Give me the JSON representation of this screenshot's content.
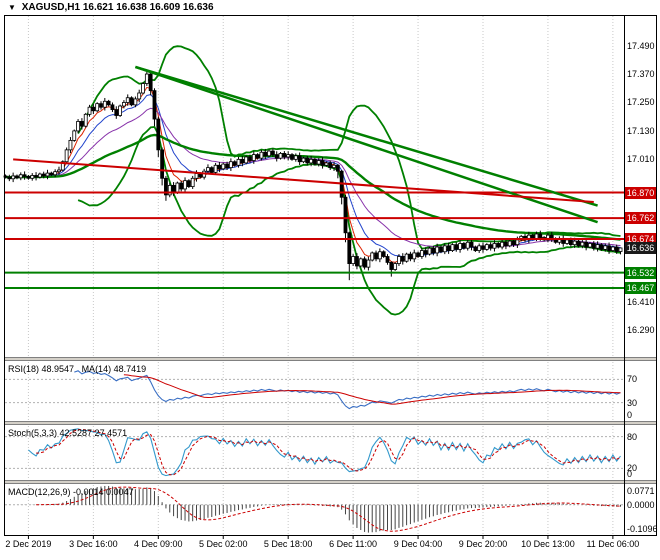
{
  "header": {
    "dropdown_icon": "▼",
    "symbol": "XAGUSD,H1",
    "ohlc": "16.621 16.638 16.609 16.636"
  },
  "price_axis": {
    "plain_labels": [
      {
        "label": "17.490",
        "price": 17.49
      },
      {
        "label": "17.370",
        "price": 17.37
      },
      {
        "label": "17.250",
        "price": 17.25
      },
      {
        "label": "17.130",
        "price": 17.13
      },
      {
        "label": "17.010",
        "price": 17.01
      },
      {
        "label": "16.410",
        "price": 16.41
      },
      {
        "label": "16.290",
        "price": 16.29
      }
    ],
    "level_boxes": [
      {
        "label": "16.870",
        "price": 16.87,
        "bg": "#cc0000"
      },
      {
        "label": "16.762",
        "price": 16.762,
        "bg": "#cc0000"
      },
      {
        "label": "16.674",
        "price": 16.674,
        "bg": "#cc0000"
      },
      {
        "label": "16.636",
        "price": 16.636,
        "bg": "#1a1a1a"
      },
      {
        "label": "16.532",
        "price": 16.532,
        "bg": "#008000"
      },
      {
        "label": "16.467",
        "price": 16.467,
        "bg": "#008000"
      }
    ]
  },
  "time_axis": {
    "labels": [
      "2 Dec 2019",
      "3 Dec 16:00",
      "4 Dec 09:00",
      "5 Dec 02:00",
      "5 Dec 18:00",
      "6 Dec 11:00",
      "9 Dec 04:00",
      "9 Dec 20:00",
      "10 Dec 13:00",
      "11 Dec 06:00"
    ]
  },
  "panels": {
    "rsi": {
      "label1": "RSI(18) 48.9547",
      "label2": "MA(14) 48.7419",
      "levels": [
        {
          "label": "70",
          "level": 70
        },
        {
          "label": "30",
          "level": 30
        }
      ],
      "bottom_label": "0",
      "config": {
        "period": 18,
        "ma_period": 14
      }
    },
    "stoch": {
      "label1": "Stoch(5,3,3) 42.5287 27.4571",
      "label2": "",
      "levels": [
        {
          "label": "80",
          "level": 80
        },
        {
          "label": "20",
          "level": 20
        }
      ],
      "bottom_label": "0",
      "config": {
        "k": 5,
        "d": 3,
        "slowing": 3
      }
    },
    "macd": {
      "label1": "MACD(12,26,9) -0.0014 0.0047",
      "label2": "",
      "axis_top": "0.0771",
      "axis_zero": "0.0000",
      "axis_bottom": "-0.1096",
      "config": {
        "fast": 12,
        "slow": 26,
        "signal": 9
      }
    }
  },
  "chart_data": {
    "type": "candlestick",
    "title": "XAGUSD H1",
    "ylim": [
      16.18,
      17.615
    ],
    "x_labels": [
      "2 Dec 2019",
      "3 Dec 16:00",
      "4 Dec 09:00",
      "5 Dec 02:00",
      "5 Dec 18:00",
      "6 Dec 11:00",
      "9 Dec 04:00",
      "9 Dec 20:00",
      "10 Dec 13:00",
      "11 Dec 06:00"
    ],
    "overlays": {
      "horizontal_lines": [
        {
          "price": 16.87,
          "color": "#cc0000",
          "width": 2
        },
        {
          "price": 16.762,
          "color": "#cc0000",
          "width": 2
        },
        {
          "price": 16.674,
          "color": "#cc0000",
          "width": 2
        },
        {
          "price": 16.532,
          "color": "#008000",
          "width": 2
        },
        {
          "price": 16.467,
          "color": "#008000",
          "width": 2
        }
      ],
      "trendlines": [
        {
          "from_bar": 34,
          "from_price": 17.4,
          "to_bar": 155,
          "to_price": 16.815,
          "color": "#008000",
          "width": 2.5
        },
        {
          "from_bar": 34,
          "from_price": 17.4,
          "to_bar": 155,
          "to_price": 16.745,
          "color": "#008000",
          "width": 2.5
        },
        {
          "from_bar": 2,
          "from_price": 17.01,
          "to_bar": 154,
          "to_price": 16.83,
          "color": "#cc0000",
          "width": 2
        }
      ],
      "moving_averages": [
        {
          "period": 5,
          "color": "#dd2200",
          "width": 1
        },
        {
          "period": 10,
          "color": "#2244cc",
          "width": 1
        },
        {
          "period": 21,
          "color": "#8833aa",
          "width": 1
        },
        {
          "period": 55,
          "color": "#008000",
          "width": 2.4
        }
      ],
      "bollinger": {
        "period": 20,
        "deviation": 2,
        "color": "#008000",
        "width": 1.8
      }
    },
    "candles": [
      [
        16.94,
        16.946,
        16.929,
        16.935
      ],
      [
        16.935,
        16.945,
        16.918,
        16.928
      ],
      [
        16.928,
        16.954,
        16.914,
        16.94
      ],
      [
        16.94,
        16.946,
        16.926,
        16.932
      ],
      [
        16.932,
        16.955,
        16.922,
        16.945
      ],
      [
        16.945,
        16.959,
        16.924,
        16.938
      ],
      [
        16.938,
        16.944,
        16.924,
        16.93
      ],
      [
        16.93,
        16.952,
        16.92,
        16.942
      ],
      [
        16.942,
        16.956,
        16.921,
        16.935
      ],
      [
        16.935,
        16.954,
        16.929,
        16.948
      ],
      [
        16.948,
        16.958,
        16.93,
        16.94
      ],
      [
        16.94,
        16.966,
        16.926,
        16.952
      ],
      [
        16.952,
        16.958,
        16.939,
        16.945
      ],
      [
        16.945,
        16.968,
        16.935,
        16.958
      ],
      [
        16.958,
        16.979,
        16.944,
        16.965
      ],
      [
        16.965,
        17.006,
        16.959,
        17.0
      ],
      [
        17.0,
        17.06,
        16.99,
        17.05
      ],
      [
        17.05,
        17.104,
        17.036,
        17.09
      ],
      [
        17.09,
        17.136,
        17.084,
        17.13
      ],
      [
        17.13,
        17.18,
        17.12,
        17.17
      ],
      [
        17.17,
        17.184,
        17.136,
        17.15
      ],
      [
        17.15,
        17.206,
        17.144,
        17.2
      ],
      [
        17.2,
        17.24,
        17.19,
        17.23
      ],
      [
        17.23,
        17.244,
        17.201,
        17.215
      ],
      [
        17.215,
        17.251,
        17.209,
        17.245
      ],
      [
        17.245,
        17.255,
        17.22,
        17.23
      ],
      [
        17.23,
        17.269,
        17.216,
        17.255
      ],
      [
        17.255,
        17.261,
        17.234,
        17.24
      ],
      [
        17.24,
        17.25,
        17.21,
        17.22
      ],
      [
        17.22,
        17.234,
        17.181,
        17.195
      ],
      [
        17.195,
        17.241,
        17.189,
        17.235
      ],
      [
        17.235,
        17.26,
        17.225,
        17.25
      ],
      [
        17.25,
        17.284,
        17.236,
        17.27
      ],
      [
        17.27,
        17.276,
        17.234,
        17.24
      ],
      [
        17.24,
        17.275,
        17.23,
        17.265
      ],
      [
        17.265,
        17.304,
        17.251,
        17.29
      ],
      [
        17.29,
        17.336,
        17.284,
        17.33
      ],
      [
        17.33,
        17.385,
        17.32,
        17.37
      ],
      [
        17.37,
        17.375,
        17.28,
        17.3
      ],
      [
        17.3,
        17.31,
        17.15,
        17.18
      ],
      [
        17.18,
        17.19,
        17.02,
        17.05
      ],
      [
        17.05,
        17.06,
        16.9,
        16.93
      ],
      [
        16.93,
        16.94,
        16.835,
        16.86
      ],
      [
        16.86,
        16.91,
        16.85,
        16.9
      ],
      [
        16.9,
        16.914,
        16.856,
        16.87
      ],
      [
        16.87,
        16.916,
        16.864,
        16.91
      ],
      [
        16.91,
        16.92,
        16.875,
        16.885
      ],
      [
        16.885,
        16.934,
        16.871,
        16.92
      ],
      [
        16.92,
        16.926,
        16.889,
        16.895
      ],
      [
        16.895,
        16.94,
        16.885,
        16.93
      ],
      [
        16.93,
        16.964,
        16.916,
        16.95
      ],
      [
        16.95,
        16.956,
        16.929,
        16.935
      ],
      [
        16.935,
        16.97,
        16.925,
        16.96
      ],
      [
        16.96,
        16.989,
        16.946,
        16.975
      ],
      [
        16.975,
        16.981,
        16.949,
        16.955
      ],
      [
        16.955,
        16.995,
        16.945,
        16.985
      ],
      [
        16.985,
        16.999,
        16.956,
        16.97
      ],
      [
        16.97,
        16.996,
        16.964,
        16.99
      ],
      [
        16.99,
        17.0,
        16.965,
        16.975
      ],
      [
        16.975,
        17.014,
        16.961,
        17.0
      ],
      [
        17.0,
        17.006,
        16.979,
        16.985
      ],
      [
        16.985,
        17.02,
        16.975,
        17.01
      ],
      [
        17.01,
        17.024,
        16.981,
        16.995
      ],
      [
        16.995,
        17.026,
        16.989,
        17.02
      ],
      [
        17.02,
        17.03,
        16.995,
        17.005
      ],
      [
        17.005,
        17.044,
        16.991,
        17.03
      ],
      [
        17.03,
        17.036,
        17.009,
        17.015
      ],
      [
        17.015,
        17.05,
        17.005,
        17.04
      ],
      [
        17.04,
        17.054,
        17.011,
        17.025
      ],
      [
        17.025,
        17.051,
        17.019,
        17.045
      ],
      [
        17.045,
        17.055,
        17.02,
        17.03
      ],
      [
        17.03,
        17.044,
        17.001,
        17.015
      ],
      [
        17.015,
        17.041,
        17.009,
        17.035
      ],
      [
        17.035,
        17.045,
        17.01,
        17.02
      ],
      [
        17.02,
        17.044,
        17.006,
        17.03
      ],
      [
        17.03,
        17.036,
        17.004,
        17.01
      ],
      [
        17.01,
        17.035,
        17.0,
        17.025
      ],
      [
        17.025,
        17.039,
        16.986,
        17.0
      ],
      [
        17.0,
        17.021,
        16.994,
        17.015
      ],
      [
        17.015,
        17.025,
        16.985,
        16.995
      ],
      [
        16.995,
        17.024,
        16.981,
        17.01
      ],
      [
        17.01,
        17.016,
        16.984,
        16.99
      ],
      [
        16.99,
        17.015,
        16.98,
        17.005
      ],
      [
        17.005,
        17.019,
        16.971,
        16.985
      ],
      [
        16.985,
        17.001,
        16.979,
        16.995
      ],
      [
        16.995,
        17.005,
        16.965,
        16.975
      ],
      [
        16.975,
        16.999,
        16.961,
        16.985
      ],
      [
        16.985,
        16.99,
        16.93,
        16.96
      ],
      [
        16.96,
        16.965,
        16.82,
        16.85
      ],
      [
        16.85,
        16.86,
        16.66,
        16.7
      ],
      [
        16.7,
        16.705,
        16.5,
        16.57
      ],
      [
        16.57,
        16.61,
        16.56,
        16.6
      ],
      [
        16.6,
        16.614,
        16.546,
        16.56
      ],
      [
        16.56,
        16.596,
        16.554,
        16.59
      ],
      [
        16.59,
        16.6,
        16.545,
        16.555
      ],
      [
        16.555,
        16.599,
        16.541,
        16.585
      ],
      [
        16.585,
        16.621,
        16.579,
        16.615
      ],
      [
        16.615,
        16.625,
        16.58,
        16.59
      ],
      [
        16.59,
        16.634,
        16.576,
        16.62
      ],
      [
        16.62,
        16.626,
        16.594,
        16.6
      ],
      [
        16.6,
        16.61,
        16.565,
        16.575
      ],
      [
        16.575,
        16.58,
        16.515,
        16.545
      ],
      [
        16.545,
        16.576,
        16.539,
        16.57
      ],
      [
        16.57,
        16.61,
        16.56,
        16.6
      ],
      [
        16.6,
        16.614,
        16.566,
        16.58
      ],
      [
        16.58,
        16.616,
        16.574,
        16.61
      ],
      [
        16.61,
        16.62,
        16.58,
        16.59
      ],
      [
        16.59,
        16.629,
        16.576,
        16.615
      ],
      [
        16.615,
        16.621,
        16.594,
        16.6
      ],
      [
        16.6,
        16.635,
        16.59,
        16.625
      ],
      [
        16.625,
        16.639,
        16.596,
        16.61
      ],
      [
        16.61,
        16.641,
        16.604,
        16.635
      ],
      [
        16.635,
        16.645,
        16.605,
        16.615
      ],
      [
        16.615,
        16.654,
        16.601,
        16.64
      ],
      [
        16.64,
        16.646,
        16.614,
        16.62
      ],
      [
        16.62,
        16.655,
        16.61,
        16.645
      ],
      [
        16.645,
        16.659,
        16.611,
        16.625
      ],
      [
        16.625,
        16.656,
        16.619,
        16.65
      ],
      [
        16.65,
        16.66,
        16.62,
        16.63
      ],
      [
        16.63,
        16.669,
        16.616,
        16.655
      ],
      [
        16.655,
        16.661,
        16.629,
        16.635
      ],
      [
        16.635,
        16.67,
        16.625,
        16.66
      ],
      [
        16.66,
        16.674,
        16.626,
        16.64
      ],
      [
        16.64,
        16.646,
        16.619,
        16.625
      ],
      [
        16.625,
        16.655,
        16.615,
        16.645
      ],
      [
        16.645,
        16.659,
        16.616,
        16.63
      ],
      [
        16.63,
        16.656,
        16.624,
        16.65
      ],
      [
        16.65,
        16.66,
        16.625,
        16.635
      ],
      [
        16.635,
        16.669,
        16.621,
        16.655
      ],
      [
        16.655,
        16.661,
        16.634,
        16.64
      ],
      [
        16.64,
        16.67,
        16.63,
        16.66
      ],
      [
        16.66,
        16.674,
        16.631,
        16.645
      ],
      [
        16.645,
        16.671,
        16.639,
        16.665
      ],
      [
        16.665,
        16.675,
        16.64,
        16.65
      ],
      [
        16.65,
        16.684,
        16.636,
        16.67
      ],
      [
        16.67,
        16.691,
        16.664,
        16.685
      ],
      [
        16.685,
        16.695,
        16.66,
        16.67
      ],
      [
        16.67,
        16.704,
        16.656,
        16.69
      ],
      [
        16.69,
        16.696,
        16.669,
        16.675
      ],
      [
        16.675,
        16.705,
        16.665,
        16.695
      ],
      [
        16.695,
        16.709,
        16.666,
        16.68
      ],
      [
        16.68,
        16.686,
        16.664,
        16.67
      ],
      [
        16.67,
        16.7,
        16.66,
        16.69
      ],
      [
        16.69,
        16.704,
        16.661,
        16.675
      ],
      [
        16.675,
        16.681,
        16.654,
        16.66
      ],
      [
        16.66,
        16.685,
        16.65,
        16.675
      ],
      [
        16.675,
        16.689,
        16.641,
        16.655
      ],
      [
        16.655,
        16.676,
        16.649,
        16.67
      ],
      [
        16.67,
        16.68,
        16.64,
        16.65
      ],
      [
        16.65,
        16.679,
        16.636,
        16.665
      ],
      [
        16.665,
        16.671,
        16.639,
        16.645
      ],
      [
        16.645,
        16.67,
        16.635,
        16.66
      ],
      [
        16.66,
        16.674,
        16.626,
        16.64
      ],
      [
        16.64,
        16.661,
        16.634,
        16.655
      ],
      [
        16.655,
        16.665,
        16.625,
        16.635
      ],
      [
        16.635,
        16.664,
        16.621,
        16.65
      ],
      [
        16.65,
        16.656,
        16.624,
        16.63
      ],
      [
        16.63,
        16.655,
        16.62,
        16.645
      ],
      [
        16.645,
        16.659,
        16.611,
        16.625
      ],
      [
        16.625,
        16.646,
        16.619,
        16.64
      ],
      [
        16.64,
        16.65,
        16.611,
        16.621
      ],
      [
        16.621,
        16.638,
        16.609,
        16.636
      ]
    ]
  },
  "colors": {
    "grid": "#c8c8c8",
    "frame": "#000000",
    "sep_bg": "#d4d0c8",
    "sep_edge": "#808080",
    "bull": "#ffffff",
    "bear": "#000000",
    "wick": "#000000",
    "rsi": "#3a6fc4",
    "rsi_signal": "#cc0000",
    "stoch_k": "#3399cc",
    "stoch_d": "#cc0000",
    "macd_hist": "#444444",
    "macd_signal": "#cc0000",
    "level_dash": "#b0b0b0"
  }
}
